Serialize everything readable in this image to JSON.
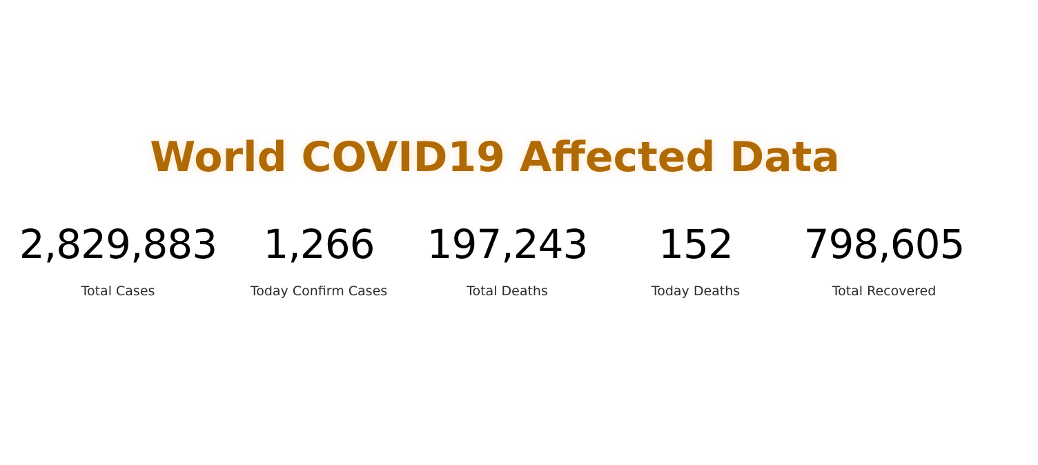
{
  "header": {
    "title": "World COVID19 Affected Data"
  },
  "colors": {
    "title": "#b06a05",
    "values": "#000000",
    "labels": "#2b2b2b",
    "background": "#ffffff"
  },
  "stats": [
    {
      "value": "2,829,883",
      "label": "Total Cases"
    },
    {
      "value": "1,266",
      "label": "Today Confirm Cases"
    },
    {
      "value": "197,243",
      "label": "Total Deaths"
    },
    {
      "value": "152",
      "label": "Today Deaths"
    },
    {
      "value": "798,605",
      "label": "Total Recovered"
    }
  ]
}
